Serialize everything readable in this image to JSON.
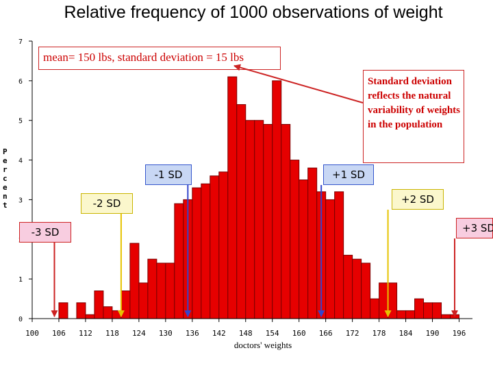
{
  "chart_data": {
    "type": "bar",
    "title": "Relative frequency of 1000 observations of weight",
    "xlabel": "doctors' weights",
    "ylabel": "Percent",
    "ylim": [
      0,
      7
    ],
    "xlim": [
      100,
      199
    ],
    "yticks": [
      "0",
      "1",
      "2",
      "3",
      "4",
      "5",
      "6",
      "7"
    ],
    "xticks": [
      "100",
      "106",
      "112",
      "118",
      "124",
      "130",
      "136",
      "142",
      "148",
      "154",
      "160",
      "166",
      "172",
      "178",
      "184",
      "190",
      "196"
    ],
    "bin_width": 2,
    "bin_starts": [
      106,
      110,
      112,
      114,
      116,
      118,
      120,
      122,
      124,
      126,
      128,
      130,
      132,
      134,
      136,
      138,
      140,
      142,
      144,
      146,
      148,
      150,
      152,
      154,
      156,
      158,
      160,
      162,
      164,
      166,
      168,
      170,
      172,
      174,
      176,
      178,
      180,
      182,
      184,
      186,
      188,
      190,
      192,
      194,
      196
    ],
    "values": [
      0.4,
      0.4,
      0.1,
      0.7,
      0.3,
      0.2,
      0.7,
      1.9,
      0.9,
      1.5,
      1.4,
      1.4,
      2.9,
      3.0,
      3.3,
      3.4,
      3.6,
      3.7,
      6.1,
      5.4,
      5.0,
      5.0,
      4.9,
      6.0,
      4.9,
      4.0,
      3.5,
      3.8,
      3.2,
      3.0,
      3.2,
      1.6,
      1.5,
      1.4,
      0.5,
      0.9,
      0.9,
      0.2,
      0.2,
      0.5,
      0.4,
      0.4,
      0.1,
      0.1,
      0.0
    ],
    "bar_color": "#e60000",
    "bar_stroke": "#7a0000"
  },
  "annotations": {
    "mean_text": "mean= 150 lbs, standard deviation = 15 lbs",
    "sd_note": "Standard deviation reflects the natural variability of weights in the population",
    "minus1": {
      "text": "-1 SD",
      "at": 135,
      "color": "#3344cc"
    },
    "plus1": {
      "text": "+1 SD",
      "at": 165,
      "color": "#3344cc"
    },
    "minus2": {
      "text": "-2 SD",
      "at": 120,
      "color": "#e6c300"
    },
    "plus2": {
      "text": "+2 SD",
      "at": 180,
      "color": "#e6c300"
    },
    "minus3": {
      "text": "-3 SD",
      "at": 105,
      "color": "#cc2222"
    },
    "plus3": {
      "text": "+3 SD",
      "at": 195,
      "color": "#cc2222"
    }
  },
  "colors": {
    "axis": "#000000",
    "arrow_red": "#cc2222"
  }
}
